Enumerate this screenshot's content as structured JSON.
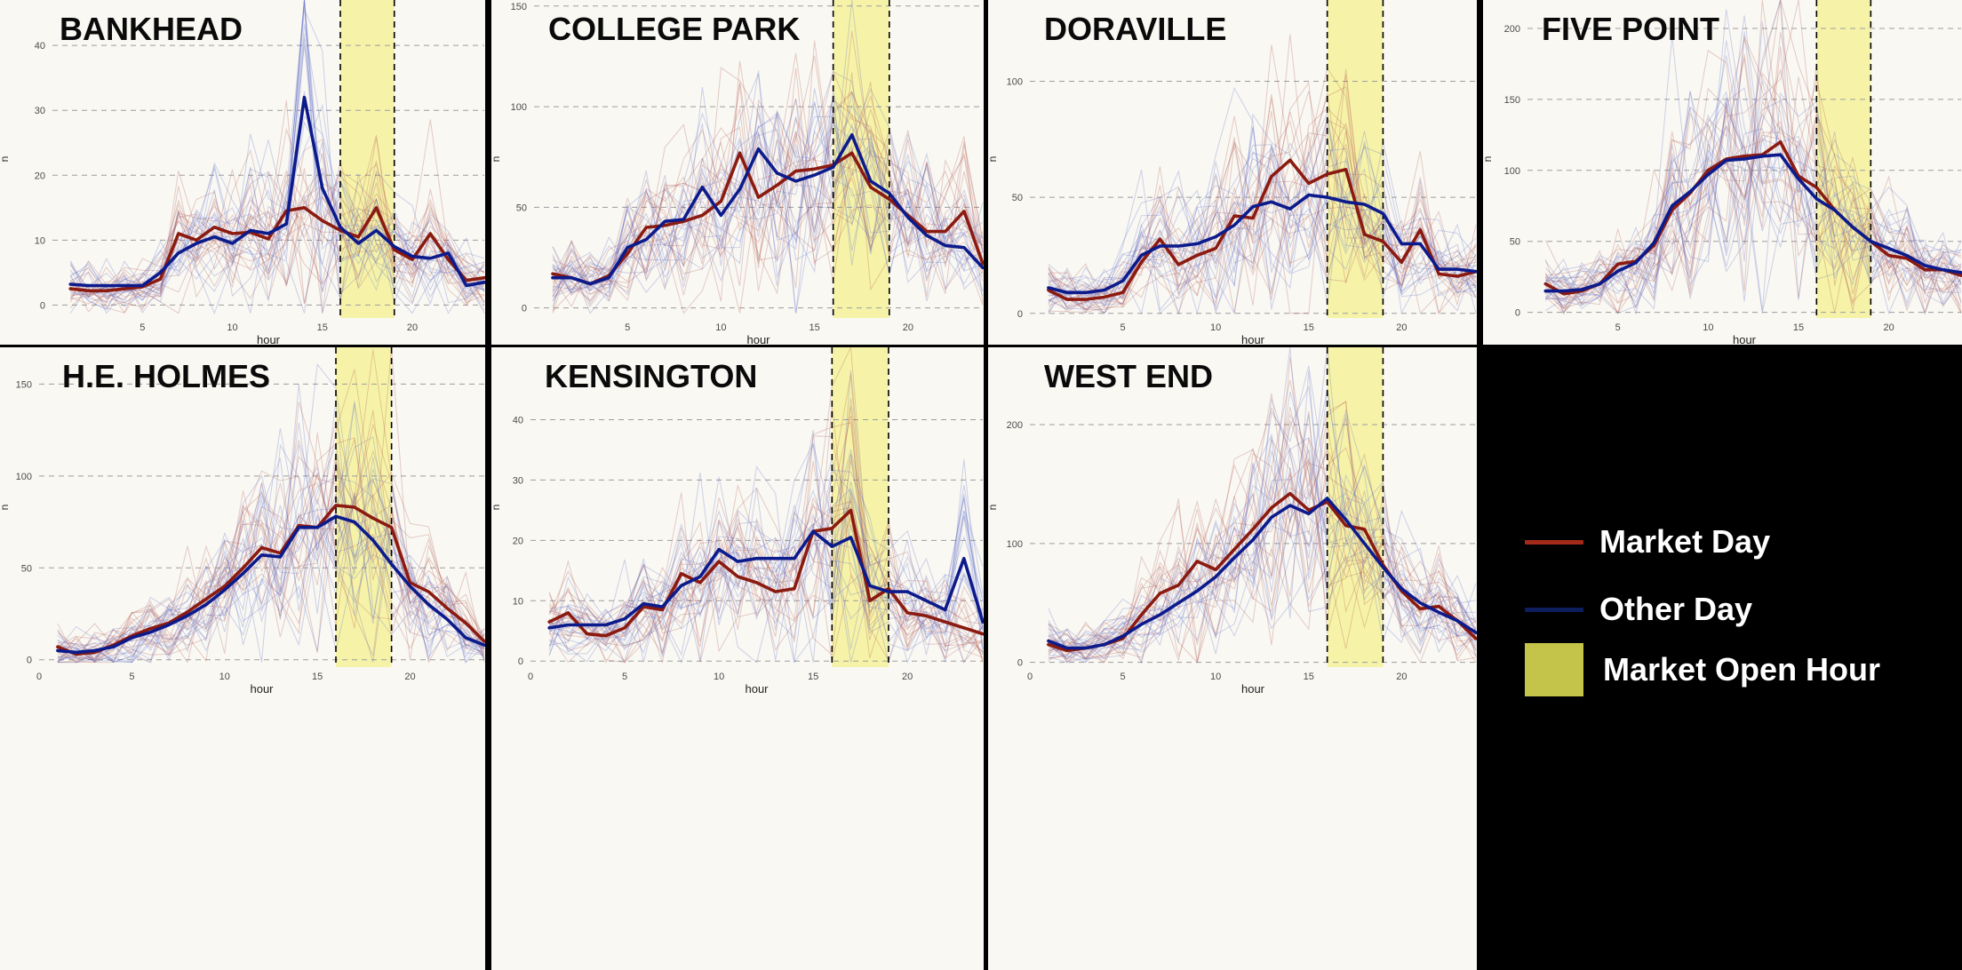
{
  "x_axis_label": "hour",
  "y_axis_label": "n",
  "colors": {
    "market_day": "#8b1a10",
    "other_day": "#0c1b8c",
    "market_open_band": "#f6f29a",
    "panel_background": "#f9f8f3"
  },
  "legend": {
    "items": [
      {
        "label": "Market Day",
        "symbol": "line",
        "color": "#a42a1a"
      },
      {
        "label": "Other Day",
        "symbol": "line",
        "color": "#0d1d5e"
      },
      {
        "label": "Market Open Hour",
        "symbol": "box",
        "color": "#c4c34a"
      }
    ]
  },
  "chart_data": [
    {
      "type": "line",
      "title": "BANKHEAD",
      "xlabel": "hour",
      "ylabel": "n",
      "xlim": [
        0,
        24
      ],
      "ylim": [
        -2,
        47
      ],
      "x_ticks": [
        5,
        10,
        15,
        20
      ],
      "y_ticks": [
        0,
        10,
        20,
        30,
        40
      ],
      "market_open_hours": [
        16,
        19
      ],
      "x": [
        1,
        2,
        3,
        4,
        5,
        6,
        7,
        8,
        9,
        10,
        11,
        12,
        13,
        14,
        15,
        16,
        17,
        18,
        19,
        20,
        21,
        22,
        23,
        24
      ],
      "series": [
        {
          "name": "Market Day",
          "values": [
            2.5,
            2.2,
            2.2,
            2.5,
            2.8,
            4.0,
            11.0,
            10.0,
            12.0,
            11.0,
            11.2,
            10.2,
            14.5,
            15.0,
            13.0,
            11.5,
            10.5,
            15.0,
            8.5,
            7.0,
            11.0,
            7.0,
            3.8,
            4.2
          ]
        },
        {
          "name": "Other Day",
          "values": [
            3.2,
            3.0,
            3.0,
            3.0,
            3.0,
            5.0,
            8.0,
            9.5,
            10.5,
            9.5,
            11.5,
            11.0,
            12.5,
            32.0,
            18.0,
            12.0,
            9.5,
            11.5,
            9.0,
            7.5,
            7.2,
            8.0,
            3.0,
            3.5
          ]
        }
      ]
    },
    {
      "type": "line",
      "title": "COLLEGE PARK",
      "xlabel": "hour",
      "ylabel": "n",
      "xlim": [
        0,
        24
      ],
      "ylim": [
        -5,
        153
      ],
      "x_ticks": [
        5,
        10,
        15,
        20
      ],
      "y_ticks": [
        0,
        50,
        100,
        150
      ],
      "market_open_hours": [
        16,
        19
      ],
      "x": [
        1,
        2,
        3,
        4,
        5,
        6,
        7,
        8,
        9,
        10,
        11,
        12,
        13,
        14,
        15,
        16,
        17,
        18,
        19,
        20,
        21,
        22,
        23,
        24
      ],
      "series": [
        {
          "name": "Market Day",
          "values": [
            17,
            15,
            12,
            16,
            27,
            40,
            41,
            43,
            46,
            53,
            77,
            55,
            61,
            68,
            69,
            71,
            77,
            60,
            54,
            46,
            38,
            38,
            48,
            22
          ]
        },
        {
          "name": "Other Day",
          "values": [
            15,
            15,
            12,
            15,
            30,
            34,
            43,
            44,
            60,
            46,
            59,
            79,
            67,
            63,
            66,
            70,
            86,
            63,
            57,
            45,
            36,
            31,
            30,
            20
          ]
        }
      ]
    },
    {
      "type": "line",
      "title": "DORAVILLE",
      "xlabel": "hour",
      "ylabel": "n",
      "xlim": [
        0,
        24
      ],
      "ylim": [
        -2,
        135
      ],
      "x_ticks": [
        5,
        10,
        15,
        20
      ],
      "y_ticks": [
        0,
        50,
        100
      ],
      "market_open_hours": [
        16,
        19
      ],
      "x": [
        1,
        2,
        3,
        4,
        5,
        6,
        7,
        8,
        9,
        10,
        11,
        12,
        13,
        14,
        15,
        16,
        17,
        18,
        19,
        20,
        21,
        22,
        23,
        24
      ],
      "series": [
        {
          "name": "Market Day",
          "values": [
            10,
            6,
            6,
            7,
            9,
            22,
            32,
            21,
            25,
            28,
            42,
            41,
            59,
            66,
            56,
            60,
            62,
            34,
            31,
            22,
            36,
            17,
            16,
            18
          ]
        },
        {
          "name": "Other Day",
          "values": [
            11,
            9,
            9,
            10,
            14,
            25,
            29,
            29,
            30,
            33,
            38,
            46,
            48,
            45,
            51,
            50,
            48,
            47,
            43,
            30,
            30,
            19,
            19,
            18
          ]
        }
      ]
    },
    {
      "type": "line",
      "title": "FIVE POINT",
      "xlabel": "hour",
      "ylabel": "n",
      "xlim": [
        0,
        24
      ],
      "ylim": [
        -4,
        220
      ],
      "x_ticks": [
        5,
        10,
        15,
        20
      ],
      "y_ticks": [
        0,
        50,
        100,
        150,
        200
      ],
      "market_open_hours": [
        16,
        19
      ],
      "x": [
        1,
        2,
        3,
        4,
        5,
        6,
        7,
        8,
        9,
        10,
        11,
        12,
        13,
        14,
        15,
        16,
        17,
        18,
        19,
        20,
        21,
        22,
        23,
        24
      ],
      "series": [
        {
          "name": "Market Day",
          "values": [
            20,
            13,
            15,
            20,
            34,
            36,
            47,
            72,
            84,
            100,
            108,
            110,
            111,
            120,
            96,
            88,
            72,
            60,
            50,
            40,
            38,
            30,
            30,
            26
          ]
        },
        {
          "name": "Other Day",
          "values": [
            15,
            15,
            16,
            20,
            29,
            35,
            49,
            75,
            85,
            97,
            107,
            108,
            110,
            111,
            94,
            80,
            72,
            60,
            50,
            45,
            40,
            33,
            30,
            28
          ]
        }
      ]
    },
    {
      "type": "line",
      "title": "H.E. HOLMES",
      "xlabel": "hour",
      "ylabel": "n",
      "xlim": [
        0,
        24
      ],
      "ylim": [
        -4,
        170
      ],
      "x_ticks": [
        0,
        5,
        10,
        15,
        20
      ],
      "y_ticks": [
        0,
        50,
        100,
        150
      ],
      "market_open_hours": [
        16,
        19
      ],
      "x": [
        1,
        2,
        3,
        4,
        5,
        6,
        7,
        8,
        9,
        10,
        11,
        12,
        13,
        14,
        15,
        16,
        17,
        18,
        19,
        20,
        21,
        22,
        23,
        24
      ],
      "series": [
        {
          "name": "Market Day",
          "values": [
            7,
            3,
            4,
            8,
            13,
            17,
            20,
            26,
            33,
            40,
            50,
            61,
            58,
            73,
            72,
            84,
            83,
            77,
            72,
            42,
            37,
            28,
            20,
            10
          ]
        },
        {
          "name": "Other Day",
          "values": [
            5,
            4,
            5,
            7,
            12,
            15,
            19,
            24,
            30,
            38,
            47,
            57,
            56,
            72,
            72,
            78,
            75,
            65,
            52,
            40,
            30,
            22,
            12,
            8
          ]
        }
      ]
    },
    {
      "type": "line",
      "title": "KENSINGTON",
      "xlabel": "hour",
      "ylabel": "n",
      "xlim": [
        0,
        24
      ],
      "ylim": [
        -1,
        52
      ],
      "x_ticks": [
        0,
        5,
        10,
        15,
        20
      ],
      "y_ticks": [
        0,
        10,
        20,
        30,
        40
      ],
      "market_open_hours": [
        16,
        19
      ],
      "x": [
        1,
        2,
        3,
        4,
        5,
        6,
        7,
        8,
        9,
        10,
        11,
        12,
        13,
        14,
        15,
        16,
        17,
        18,
        19,
        20,
        21,
        22,
        23,
        24
      ],
      "series": [
        {
          "name": "Market Day",
          "values": [
            6.5,
            8.0,
            4.5,
            4.2,
            5.5,
            9.0,
            8.5,
            14.5,
            13.0,
            16.5,
            14.0,
            13.0,
            11.5,
            12.0,
            21.5,
            22.0,
            25.0,
            10.0,
            12.0,
            8.0,
            7.5,
            6.5,
            5.5,
            4.5
          ]
        },
        {
          "name": "Other Day",
          "values": [
            5.5,
            6.0,
            6.0,
            6.0,
            7.0,
            9.5,
            9.0,
            12.5,
            14.0,
            18.5,
            16.5,
            17.0,
            17.0,
            17.0,
            21.5,
            19.0,
            20.5,
            12.5,
            11.5,
            11.5,
            10.0,
            8.5,
            17.0,
            6.5
          ]
        }
      ]
    },
    {
      "type": "line",
      "title": "WEST END",
      "xlabel": "hour",
      "ylabel": "n",
      "xlim": [
        0,
        24
      ],
      "ylim": [
        -4,
        265
      ],
      "x_ticks": [
        0,
        5,
        10,
        15,
        20
      ],
      "y_ticks": [
        0,
        100,
        200
      ],
      "market_open_hours": [
        16,
        19
      ],
      "x": [
        1,
        2,
        3,
        4,
        5,
        6,
        7,
        8,
        9,
        10,
        11,
        12,
        13,
        14,
        15,
        16,
        17,
        18,
        19,
        20,
        21,
        22,
        23,
        24
      ],
      "series": [
        {
          "name": "Market Day",
          "values": [
            15,
            10,
            12,
            15,
            20,
            40,
            58,
            65,
            85,
            78,
            95,
            112,
            130,
            142,
            128,
            135,
            115,
            112,
            82,
            60,
            45,
            47,
            35,
            20
          ]
        },
        {
          "name": "Other Day",
          "values": [
            18,
            12,
            12,
            15,
            22,
            32,
            40,
            50,
            60,
            72,
            88,
            103,
            122,
            132,
            125,
            138,
            120,
            100,
            80,
            62,
            50,
            42,
            35,
            25
          ]
        }
      ]
    }
  ]
}
